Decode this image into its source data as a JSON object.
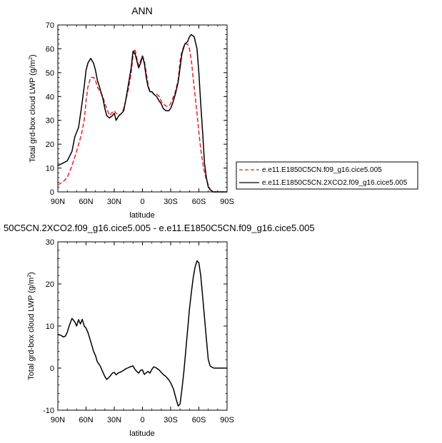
{
  "chart_data": [
    {
      "type": "line",
      "title": "ANN",
      "xlabel": "latitude",
      "ylabel": "Total grd-box cloud LWP (g/m",
      "ylabel_sup": "2",
      "ylabel_end": ")",
      "xlim": [
        -90,
        90
      ],
      "ylim": [
        0,
        70
      ],
      "x_ticks": [
        -90,
        -60,
        -30,
        0,
        30,
        60,
        90
      ],
      "x_tick_labels": [
        "90N",
        "60N",
        "30N",
        "0",
        "30S",
        "60S",
        "90S"
      ],
      "y_ticks": [
        0,
        10,
        20,
        30,
        40,
        50,
        60,
        70
      ],
      "y_tick_labels": [
        "0",
        "10",
        "20",
        "30",
        "40",
        "50",
        "60",
        "70"
      ],
      "grid": false,
      "legend_position": "right",
      "series": [
        {
          "name": "e.e11.E1850C5CN.f09_g16.cice5.005",
          "color": "#e8202a",
          "dash": "dashed",
          "x": [
            -90,
            -85,
            -80,
            -75,
            -70,
            -65,
            -62,
            -60,
            -58,
            -55,
            -52,
            -50,
            -48,
            -45,
            -42,
            -40,
            -38,
            -35,
            -33,
            -30,
            -28,
            -25,
            -22,
            -20,
            -18,
            -15,
            -12,
            -10,
            -8,
            -6,
            -4,
            -2,
            0,
            2,
            4,
            6,
            8,
            10,
            12,
            15,
            18,
            20,
            22,
            25,
            28,
            30,
            32,
            35,
            38,
            40,
            42,
            45,
            48,
            50,
            52,
            55,
            58,
            60,
            62,
            65,
            68,
            70,
            72,
            75,
            80,
            85,
            90
          ],
          "y": [
            3,
            4,
            6,
            11,
            17,
            24,
            30,
            38,
            44,
            48,
            48,
            47,
            44,
            42,
            40,
            37,
            35,
            32,
            33,
            34,
            33,
            32,
            33,
            35,
            38,
            43,
            50,
            57,
            60,
            56,
            53,
            55,
            57,
            55,
            50,
            45,
            42,
            42,
            41,
            41,
            40,
            38,
            37,
            36,
            36,
            37,
            39,
            42,
            47,
            55,
            59,
            62,
            62,
            60,
            55,
            44,
            33,
            25,
            18,
            10,
            5,
            3,
            1,
            0,
            0,
            0,
            0
          ]
        },
        {
          "name": "e.e11.E1850C5CN.2XCO2.f09_g16.cice5.005",
          "color": "#000000",
          "dash": "solid",
          "x": [
            -90,
            -85,
            -80,
            -75,
            -72,
            -70,
            -68,
            -65,
            -62,
            -60,
            -58,
            -55,
            -52,
            -50,
            -48,
            -45,
            -42,
            -40,
            -38,
            -35,
            -32,
            -30,
            -28,
            -25,
            -22,
            -20,
            -18,
            -15,
            -12,
            -10,
            -8,
            -6,
            -4,
            -2,
            0,
            2,
            4,
            6,
            8,
            10,
            12,
            15,
            18,
            20,
            22,
            25,
            28,
            30,
            32,
            35,
            38,
            40,
            42,
            45,
            48,
            50,
            52,
            55,
            58,
            60,
            62,
            64,
            66,
            68,
            70,
            72,
            75,
            80,
            85,
            90
          ],
          "y": [
            11,
            12,
            13,
            17,
            23,
            25,
            27,
            35,
            44,
            51,
            54,
            56,
            54,
            51,
            47,
            43,
            39,
            35,
            32,
            31,
            32,
            33,
            30,
            32,
            33,
            34,
            38,
            45,
            52,
            59,
            58,
            55,
            52,
            54,
            57,
            54,
            48,
            44,
            42,
            42,
            41,
            40,
            38,
            37,
            35,
            34,
            34,
            35,
            37,
            41,
            46,
            52,
            58,
            62,
            63,
            65,
            66,
            65,
            60,
            50,
            37,
            25,
            12,
            6,
            2,
            1,
            0,
            0,
            0,
            0
          ]
        }
      ]
    },
    {
      "type": "line",
      "title": "50C5CN.2XCO2.f09_g16.cice5.005 - e.e11.E1850C5CN.f09_g16.cice5.005",
      "xlabel": "latitude",
      "ylabel": "Total grd-box cloud LWP (g/m",
      "ylabel_sup": "2",
      "ylabel_end": ")",
      "xlim": [
        -90,
        90
      ],
      "ylim": [
        -10,
        30
      ],
      "x_ticks": [
        -90,
        -60,
        -30,
        0,
        30,
        60,
        90
      ],
      "x_tick_labels": [
        "90N",
        "60N",
        "30N",
        "0",
        "30S",
        "60S",
        "90S"
      ],
      "y_ticks": [
        -10,
        0,
        10,
        20,
        30
      ],
      "y_tick_labels": [
        "-10",
        "0",
        "10",
        "20",
        "30"
      ],
      "grid": false,
      "series": [
        {
          "color": "#000000",
          "dash": "solid",
          "x": [
            -90,
            -87,
            -84,
            -82,
            -80,
            -78,
            -75,
            -72,
            -70,
            -68,
            -66,
            -64,
            -62,
            -60,
            -58,
            -56,
            -54,
            -52,
            -50,
            -48,
            -45,
            -42,
            -40,
            -38,
            -36,
            -34,
            -32,
            -30,
            -28,
            -26,
            -24,
            -22,
            -20,
            -18,
            -16,
            -14,
            -12,
            -10,
            -8,
            -6,
            -4,
            -2,
            0,
            2,
            4,
            6,
            8,
            10,
            12,
            15,
            18,
            20,
            22,
            25,
            28,
            30,
            33,
            36,
            38,
            40,
            42,
            44,
            46,
            48,
            50,
            52,
            54,
            56,
            58,
            60,
            62,
            64,
            66,
            68,
            70,
            72,
            74,
            76,
            78,
            80,
            84,
            88,
            90
          ],
          "y": [
            8,
            7.8,
            7.4,
            7.6,
            8.5,
            10,
            11.8,
            11,
            10,
            11.5,
            10.5,
            11.6,
            10,
            9.5,
            8.5,
            7,
            5.5,
            4,
            3,
            1.5,
            0.5,
            -1,
            -2,
            -2.7,
            -2.3,
            -1.8,
            -1.2,
            -1,
            -1.6,
            -1.2,
            -1,
            -0.8,
            -0.5,
            -0.2,
            0,
            0.2,
            0.4,
            0.5,
            -0.3,
            -0.8,
            -1.2,
            -0.5,
            -0.4,
            -1.5,
            -1.1,
            -0.8,
            -1.2,
            -0.3,
            0.3,
            0,
            -0.5,
            -1,
            -1.5,
            -2,
            -2.8,
            -3.5,
            -5,
            -7.5,
            -9,
            -8.5,
            -5,
            -1,
            4,
            9,
            14,
            18,
            21.5,
            24,
            25.5,
            25,
            22,
            17,
            12,
            7,
            2,
            0.5,
            0.2,
            0,
            0,
            0,
            0,
            0,
            0
          ]
        }
      ]
    }
  ]
}
